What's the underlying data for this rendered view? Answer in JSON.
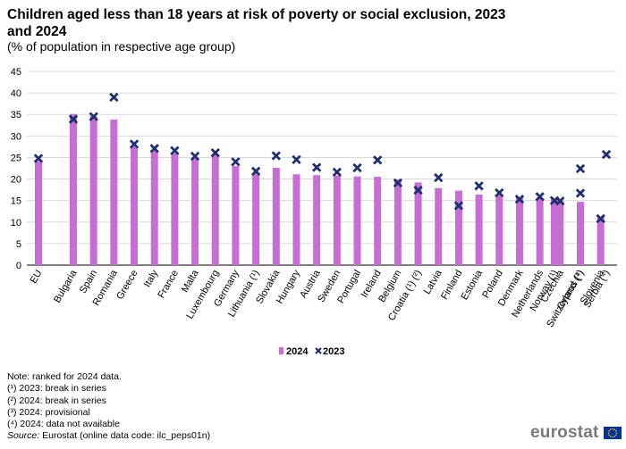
{
  "title": "Children aged less than 18 years at risk of poverty or social exclusion, 2023 and 2024",
  "subtitle": "(% of population in respective age group)",
  "colors": {
    "bar_2024": "#c76ed4",
    "marker_2023": "#1f2f72",
    "gridline": "#d9d9d9",
    "axis": "#000000"
  },
  "chart_data": {
    "type": "bar",
    "title": "Children aged less than 18 years at risk of poverty or social exclusion, 2023 and 2024",
    "xlabel": "",
    "ylabel": "",
    "ylim": [
      0,
      45
    ],
    "yticks": [
      0,
      5,
      10,
      15,
      20,
      25,
      30,
      35,
      40,
      45
    ],
    "grid": true,
    "legend_position": "bottom",
    "categories": [
      "EU",
      "Bulgaria",
      "Spain",
      "Romania",
      "Greece",
      "Italy",
      "France",
      "Malta",
      "Luxembourg",
      "Germany",
      "Lithuania (¹)",
      "Slovakia",
      "Hungary",
      "Austria",
      "Sweden",
      "Portugal",
      "Ireland",
      "Belgium",
      "Croatia (¹) (²)",
      "Latvia",
      "Finland",
      "Estonia",
      "Poland",
      "Denmark",
      "Netherlands",
      "Czechia",
      "Cyprus (³)",
      "Slovenia",
      "Norway (¹)",
      "Switzerland (⁴)",
      "Serbia (⁴)"
    ],
    "series": [
      {
        "name": "2024",
        "kind": "bar",
        "values": [
          24.2,
          35.1,
          34.6,
          33.8,
          27.5,
          26.6,
          26.0,
          24.8,
          25.7,
          23.0,
          21.3,
          22.6,
          21.1,
          20.9,
          20.8,
          20.6,
          20.5,
          19.9,
          19.2,
          17.9,
          17.3,
          16.4,
          16.3,
          15.8,
          15.5,
          14.9,
          14.7,
          11.2,
          15.3,
          null,
          null
        ]
      },
      {
        "name": "2023",
        "kind": "marker",
        "values": [
          24.8,
          33.9,
          34.5,
          39.0,
          28.1,
          27.1,
          26.6,
          25.3,
          26.1,
          24.0,
          21.8,
          25.4,
          24.5,
          22.7,
          21.6,
          22.6,
          24.4,
          19.1,
          17.4,
          20.3,
          13.8,
          18.4,
          16.8,
          15.3,
          15.9,
          14.9,
          16.7,
          10.8,
          15.0,
          22.4,
          25.7
        ]
      }
    ],
    "legend": [
      "2024",
      "2023"
    ]
  },
  "notes": {
    "ranking": "Note: ranked for 2024 data.",
    "footnotes": [
      "(¹) 2023: break in series",
      "(²) 2024: break in series",
      "(³) 2024: provisional",
      "(⁴) 2024: data not available"
    ],
    "source_label": "Source:",
    "source_text": "Eurostat (online data code: ilc_peps01n)"
  },
  "logo": {
    "text": "eurostat",
    "flag": "eu-flag-icon"
  }
}
